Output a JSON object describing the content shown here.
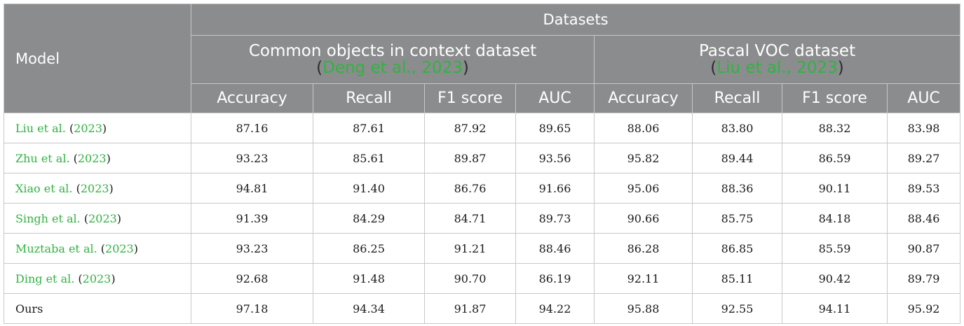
{
  "header": {
    "model": "Model",
    "datasets": "Datasets",
    "groups": [
      {
        "name": "Common objects in context dataset",
        "cite_open": "(",
        "cite": "Deng et al., 2023",
        "cite_close": ")"
      },
      {
        "name": "Pascal VOC dataset",
        "cite_open": "(",
        "cite": "Liu et al., 2023",
        "cite_close": ")"
      }
    ],
    "metrics": [
      "Accuracy",
      "Recall",
      "F1 score",
      "AUC",
      "Accuracy",
      "Recall",
      "F1 score",
      "AUC"
    ]
  },
  "rows": [
    {
      "author": "Liu et al.",
      "year_open": " (",
      "year": "2023",
      "year_close": ")",
      "values": [
        "87.16",
        "87.61",
        "87.92",
        "89.65",
        "88.06",
        "83.80",
        "88.32",
        "83.98"
      ]
    },
    {
      "author": "Zhu et al.",
      "year_open": " (",
      "year": "2023",
      "year_close": ")",
      "values": [
        "93.23",
        "85.61",
        "89.87",
        "93.56",
        "95.82",
        "89.44",
        "86.59",
        "89.27"
      ]
    },
    {
      "author": "Xiao et al.",
      "year_open": " (",
      "year": "2023",
      "year_close": ")",
      "values": [
        "94.81",
        "91.40",
        "86.76",
        "91.66",
        "95.06",
        "88.36",
        "90.11",
        "89.53"
      ]
    },
    {
      "author": "Singh et al.",
      "year_open": " (",
      "year": "2023",
      "year_close": ")",
      "values": [
        "91.39",
        "84.29",
        "84.71",
        "89.73",
        "90.66",
        "85.75",
        "84.18",
        "88.46"
      ]
    },
    {
      "author": "Muztaba et al.",
      "year_open": " (",
      "year": "2023",
      "year_close": ")",
      "values": [
        "93.23",
        "86.25",
        "91.21",
        "88.46",
        "86.28",
        "86.85",
        "85.59",
        "90.87"
      ]
    },
    {
      "author": "Ding et al.",
      "year_open": " (",
      "year": "2023",
      "year_close": ")",
      "values": [
        "92.68",
        "91.48",
        "90.70",
        "86.19",
        "92.11",
        "85.11",
        "90.42",
        "89.79"
      ]
    },
    {
      "author": "Ours",
      "year_open": "",
      "year": "",
      "year_close": "",
      "values": [
        "97.18",
        "94.34",
        "91.87",
        "94.22",
        "95.88",
        "92.55",
        "94.11",
        "95.92"
      ]
    }
  ],
  "colors": {
    "header_bg": "#8b8c8d",
    "link": "#2fb441",
    "border": "#c8c8c8"
  }
}
